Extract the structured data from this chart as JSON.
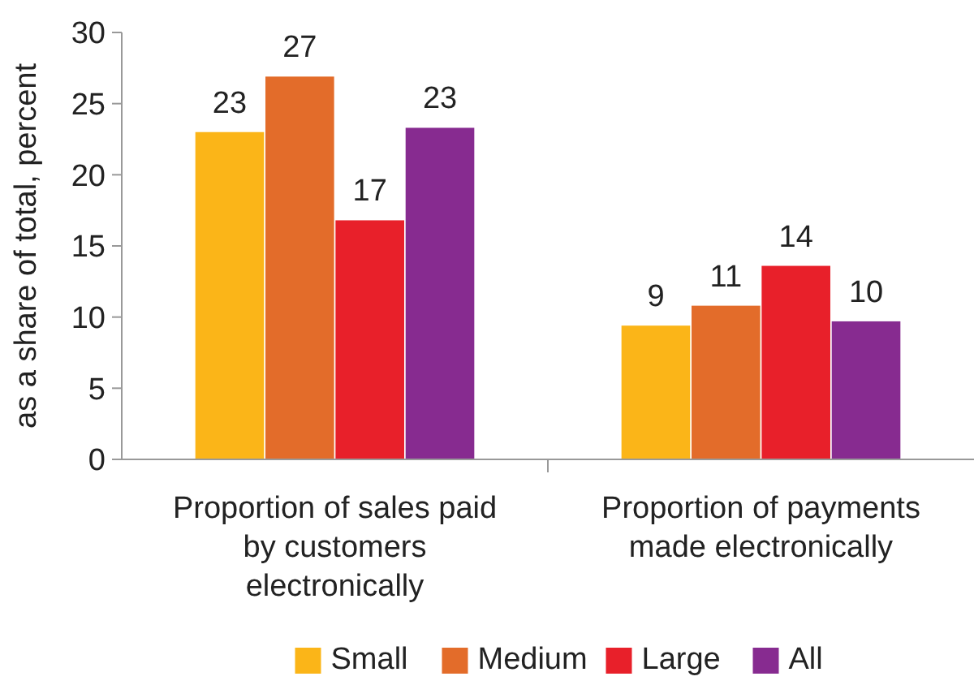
{
  "chart_data": {
    "type": "bar",
    "ylabel": "as a share of total, percent",
    "categories": [
      "Proportion of sales paid by customers electronically",
      "Proportion of payments made electronically"
    ],
    "series": [
      {
        "name": "Small",
        "color": "#fbb518",
        "values": [
          23.0,
          9.4
        ],
        "value_labels": [
          "23",
          "9"
        ]
      },
      {
        "name": "Medium",
        "color": "#e36c2a",
        "values": [
          26.9,
          10.8
        ],
        "value_labels": [
          "27",
          "11"
        ]
      },
      {
        "name": "Large",
        "color": "#e8202a",
        "values": [
          16.8,
          13.6
        ],
        "value_labels": [
          "17",
          "14"
        ]
      },
      {
        "name": "All",
        "color": "#872b90",
        "values": [
          23.3,
          9.7
        ],
        "value_labels": [
          "23",
          "10"
        ]
      }
    ],
    "ylim": [
      0,
      30
    ],
    "yticks": [
      0,
      5,
      10,
      15,
      20,
      25,
      30
    ],
    "grid": false,
    "legend": "bottom"
  }
}
